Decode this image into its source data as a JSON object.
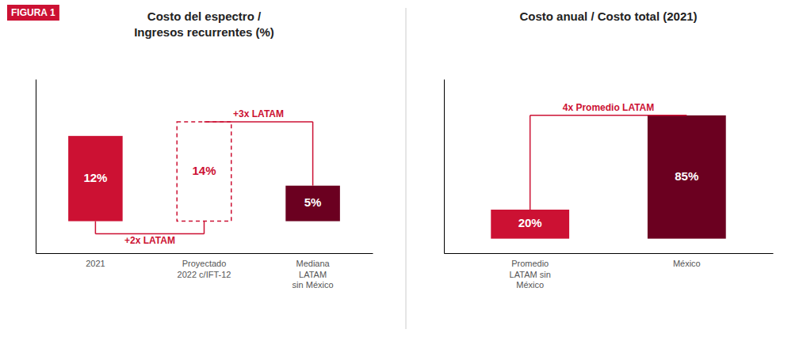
{
  "title": "FIGURA 1",
  "chart_data": [
    {
      "type": "bar",
      "title": "Costo del espectro /\nIngresos recurrentes (%)",
      "categories": [
        "2021",
        "Proyectado\n2022 c/IFT-12",
        "Mediana\nLATAM\nsin México"
      ],
      "values": [
        12,
        14,
        5
      ],
      "value_labels": [
        "12%",
        "14%",
        "5%"
      ],
      "data_labels": true,
      "colors": [
        "#cc1133",
        "none",
        "#6b0020"
      ],
      "ylim": [
        -4.5,
        20
      ],
      "tick_labels": "x",
      "annotations": [
        "+3x LATAM",
        "+2x LATAM"
      ]
    },
    {
      "type": "bar",
      "title": "Costo anual / Costo total (2021)",
      "categories": [
        "Promedio\nLATAM sin\nMéxico",
        "México"
      ],
      "values": [
        20,
        85
      ],
      "value_labels": [
        "20%",
        "85%"
      ],
      "data_labels": true,
      "colors": [
        "#cc1133",
        "#6b0020"
      ],
      "ylim": [
        -10,
        110
      ],
      "tick_labels": "x",
      "annotations": [
        "4x Promedio LATAM"
      ]
    }
  ]
}
